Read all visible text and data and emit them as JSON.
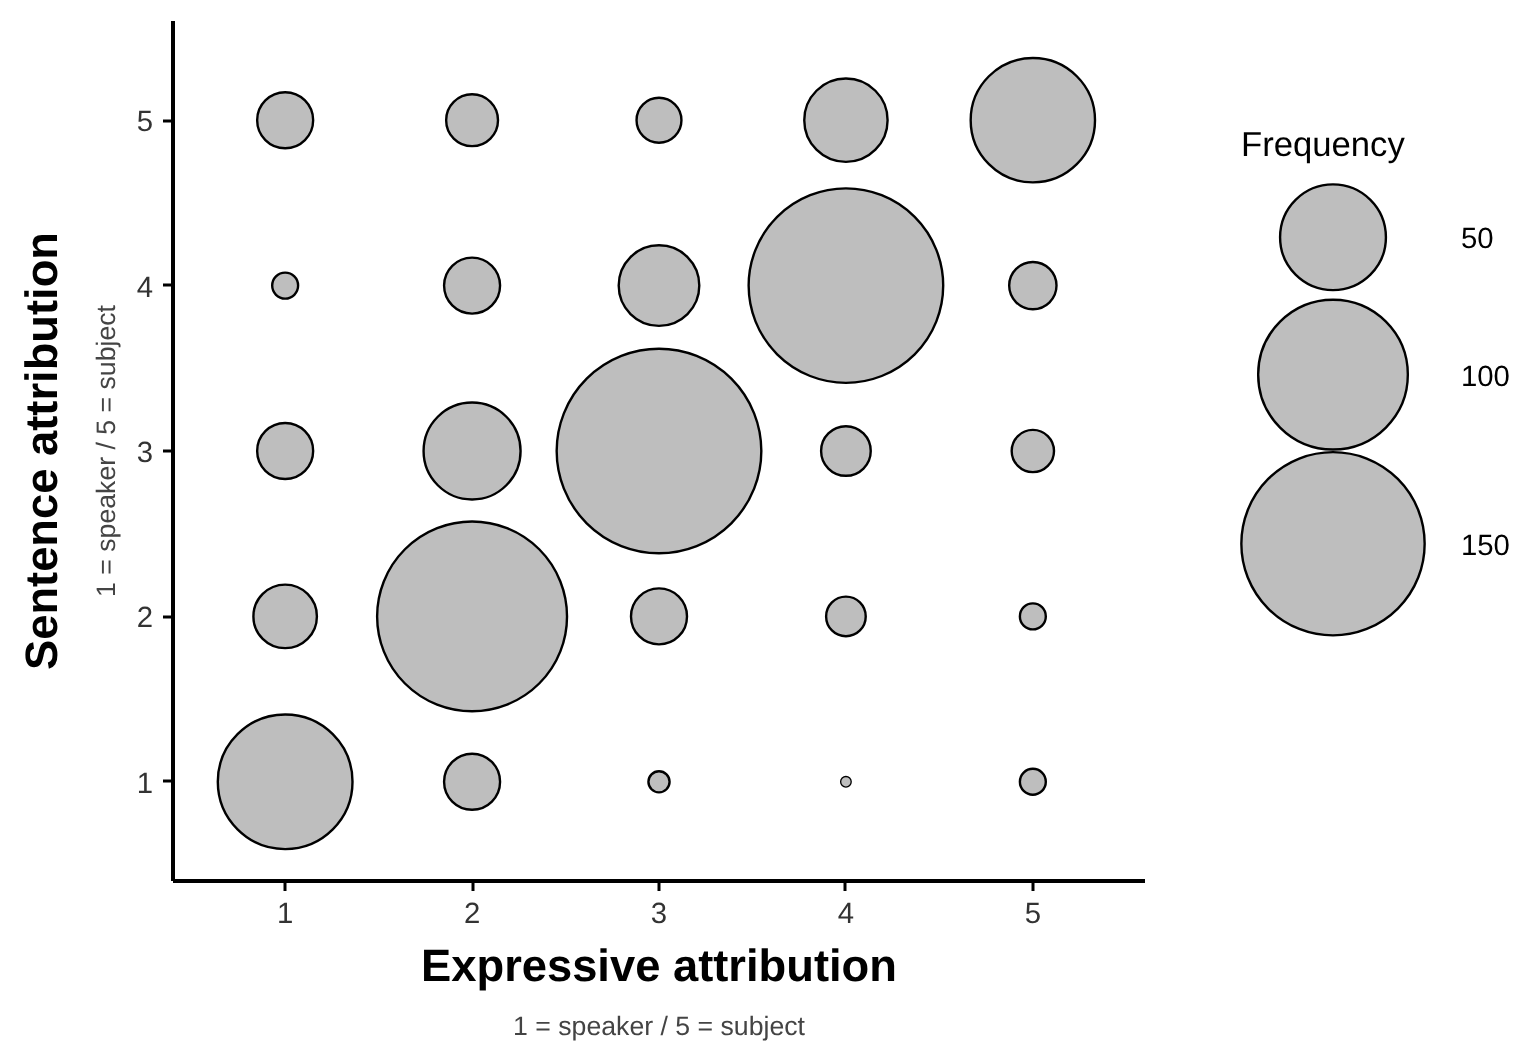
{
  "chart_data": {
    "type": "bubble",
    "xlabel": "Expressive attribution",
    "ylabel": "Sentence attribution",
    "annotations": [
      "1 = speaker / 5 = subject",
      "1 = speaker / 5 = subject"
    ],
    "legend_title": "Frequency",
    "size_legend": [
      50,
      100,
      150
    ],
    "grid": false,
    "xlim": [
      0.4,
      5.6
    ],
    "ylim": [
      0.4,
      5.6
    ],
    "xticks": [
      1,
      2,
      3,
      4,
      5
    ],
    "yticks": [
      1,
      2,
      3,
      4,
      5
    ],
    "series": [
      {
        "color": "#bebebe",
        "x": [
          1,
          2,
          3,
          4,
          5,
          1,
          2,
          3,
          4,
          5,
          1,
          2,
          3,
          4,
          5,
          1,
          2,
          3,
          4,
          5,
          1,
          2,
          3,
          4,
          5
        ],
        "values": [
          5,
          5,
          5,
          5,
          5,
          4,
          4,
          4,
          4,
          4,
          3,
          3,
          3,
          3,
          3,
          2,
          2,
          2,
          2,
          2,
          1,
          1,
          1,
          1,
          1
        ],
        "sizes": [
          14,
          12,
          9,
          31,
          69,
          3,
          14,
          29,
          169,
          10,
          14,
          42,
          187,
          11,
          8,
          18,
          161,
          14,
          7,
          3,
          81,
          14,
          2,
          0.5,
          3
        ]
      }
    ]
  }
}
